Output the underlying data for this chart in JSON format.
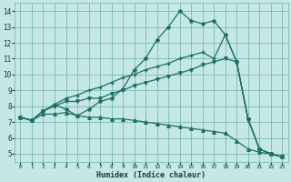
{
  "xlabel": "Humidex (Indice chaleur)",
  "background_color": "#c5e8e5",
  "grid_color": "#6ab0aa",
  "line_color": "#1e6e68",
  "xlim": [
    -0.5,
    23.5
  ],
  "ylim": [
    4.5,
    14.5
  ],
  "xticks": [
    0,
    1,
    2,
    3,
    4,
    5,
    6,
    7,
    8,
    9,
    10,
    11,
    12,
    13,
    14,
    15,
    16,
    17,
    18,
    19,
    20,
    21,
    22,
    23
  ],
  "yticks": [
    5,
    6,
    7,
    8,
    9,
    10,
    11,
    12,
    13,
    14
  ],
  "curve1_x": [
    0,
    1,
    2,
    3,
    4,
    5,
    6,
    7,
    8,
    9,
    10,
    11,
    12,
    13,
    14,
    15,
    16,
    17,
    18,
    19,
    20,
    21,
    22,
    23
  ],
  "curve1_y": [
    7.3,
    7.1,
    7.7,
    8.1,
    7.8,
    7.4,
    7.8,
    8.3,
    8.5,
    9.1,
    10.3,
    11.0,
    12.2,
    13.0,
    14.0,
    13.4,
    13.2,
    13.4,
    12.5,
    10.8,
    7.2,
    5.3,
    5.0,
    4.8
  ],
  "curve2_x": [
    0,
    1,
    2,
    3,
    4,
    5,
    6,
    7,
    8,
    9,
    10,
    11,
    12,
    13,
    14,
    15,
    16,
    17,
    18,
    19,
    20,
    21,
    22,
    23
  ],
  "curve2_y": [
    7.3,
    7.1,
    7.7,
    8.1,
    8.5,
    8.7,
    9.0,
    9.2,
    9.5,
    9.8,
    10.0,
    10.3,
    10.5,
    10.7,
    11.0,
    11.2,
    11.4,
    11.0,
    12.5,
    10.8,
    7.2,
    5.3,
    5.0,
    4.8
  ],
  "curve3_x": [
    0,
    1,
    2,
    3,
    4,
    5,
    6,
    7,
    8,
    9,
    10,
    11,
    12,
    13,
    14,
    15,
    16,
    17,
    18,
    19,
    20,
    21,
    22,
    23
  ],
  "curve3_y": [
    7.3,
    7.1,
    7.7,
    8.0,
    8.3,
    8.3,
    8.5,
    8.5,
    8.8,
    9.0,
    9.3,
    9.5,
    9.7,
    9.9,
    10.1,
    10.3,
    10.6,
    10.8,
    11.0,
    10.8,
    7.2,
    5.3,
    5.0,
    4.8
  ],
  "curve4_x": [
    0,
    1,
    2,
    3,
    4,
    5,
    6,
    7,
    8,
    9,
    10,
    11,
    12,
    13,
    14,
    15,
    16,
    17,
    18,
    19,
    20,
    21,
    22,
    23
  ],
  "curve4_y": [
    7.3,
    7.1,
    7.5,
    7.5,
    7.6,
    7.4,
    7.3,
    7.3,
    7.2,
    7.2,
    7.1,
    7.0,
    6.9,
    6.8,
    6.7,
    6.6,
    6.5,
    6.4,
    6.3,
    5.8,
    5.3,
    5.1,
    5.0,
    4.8
  ]
}
